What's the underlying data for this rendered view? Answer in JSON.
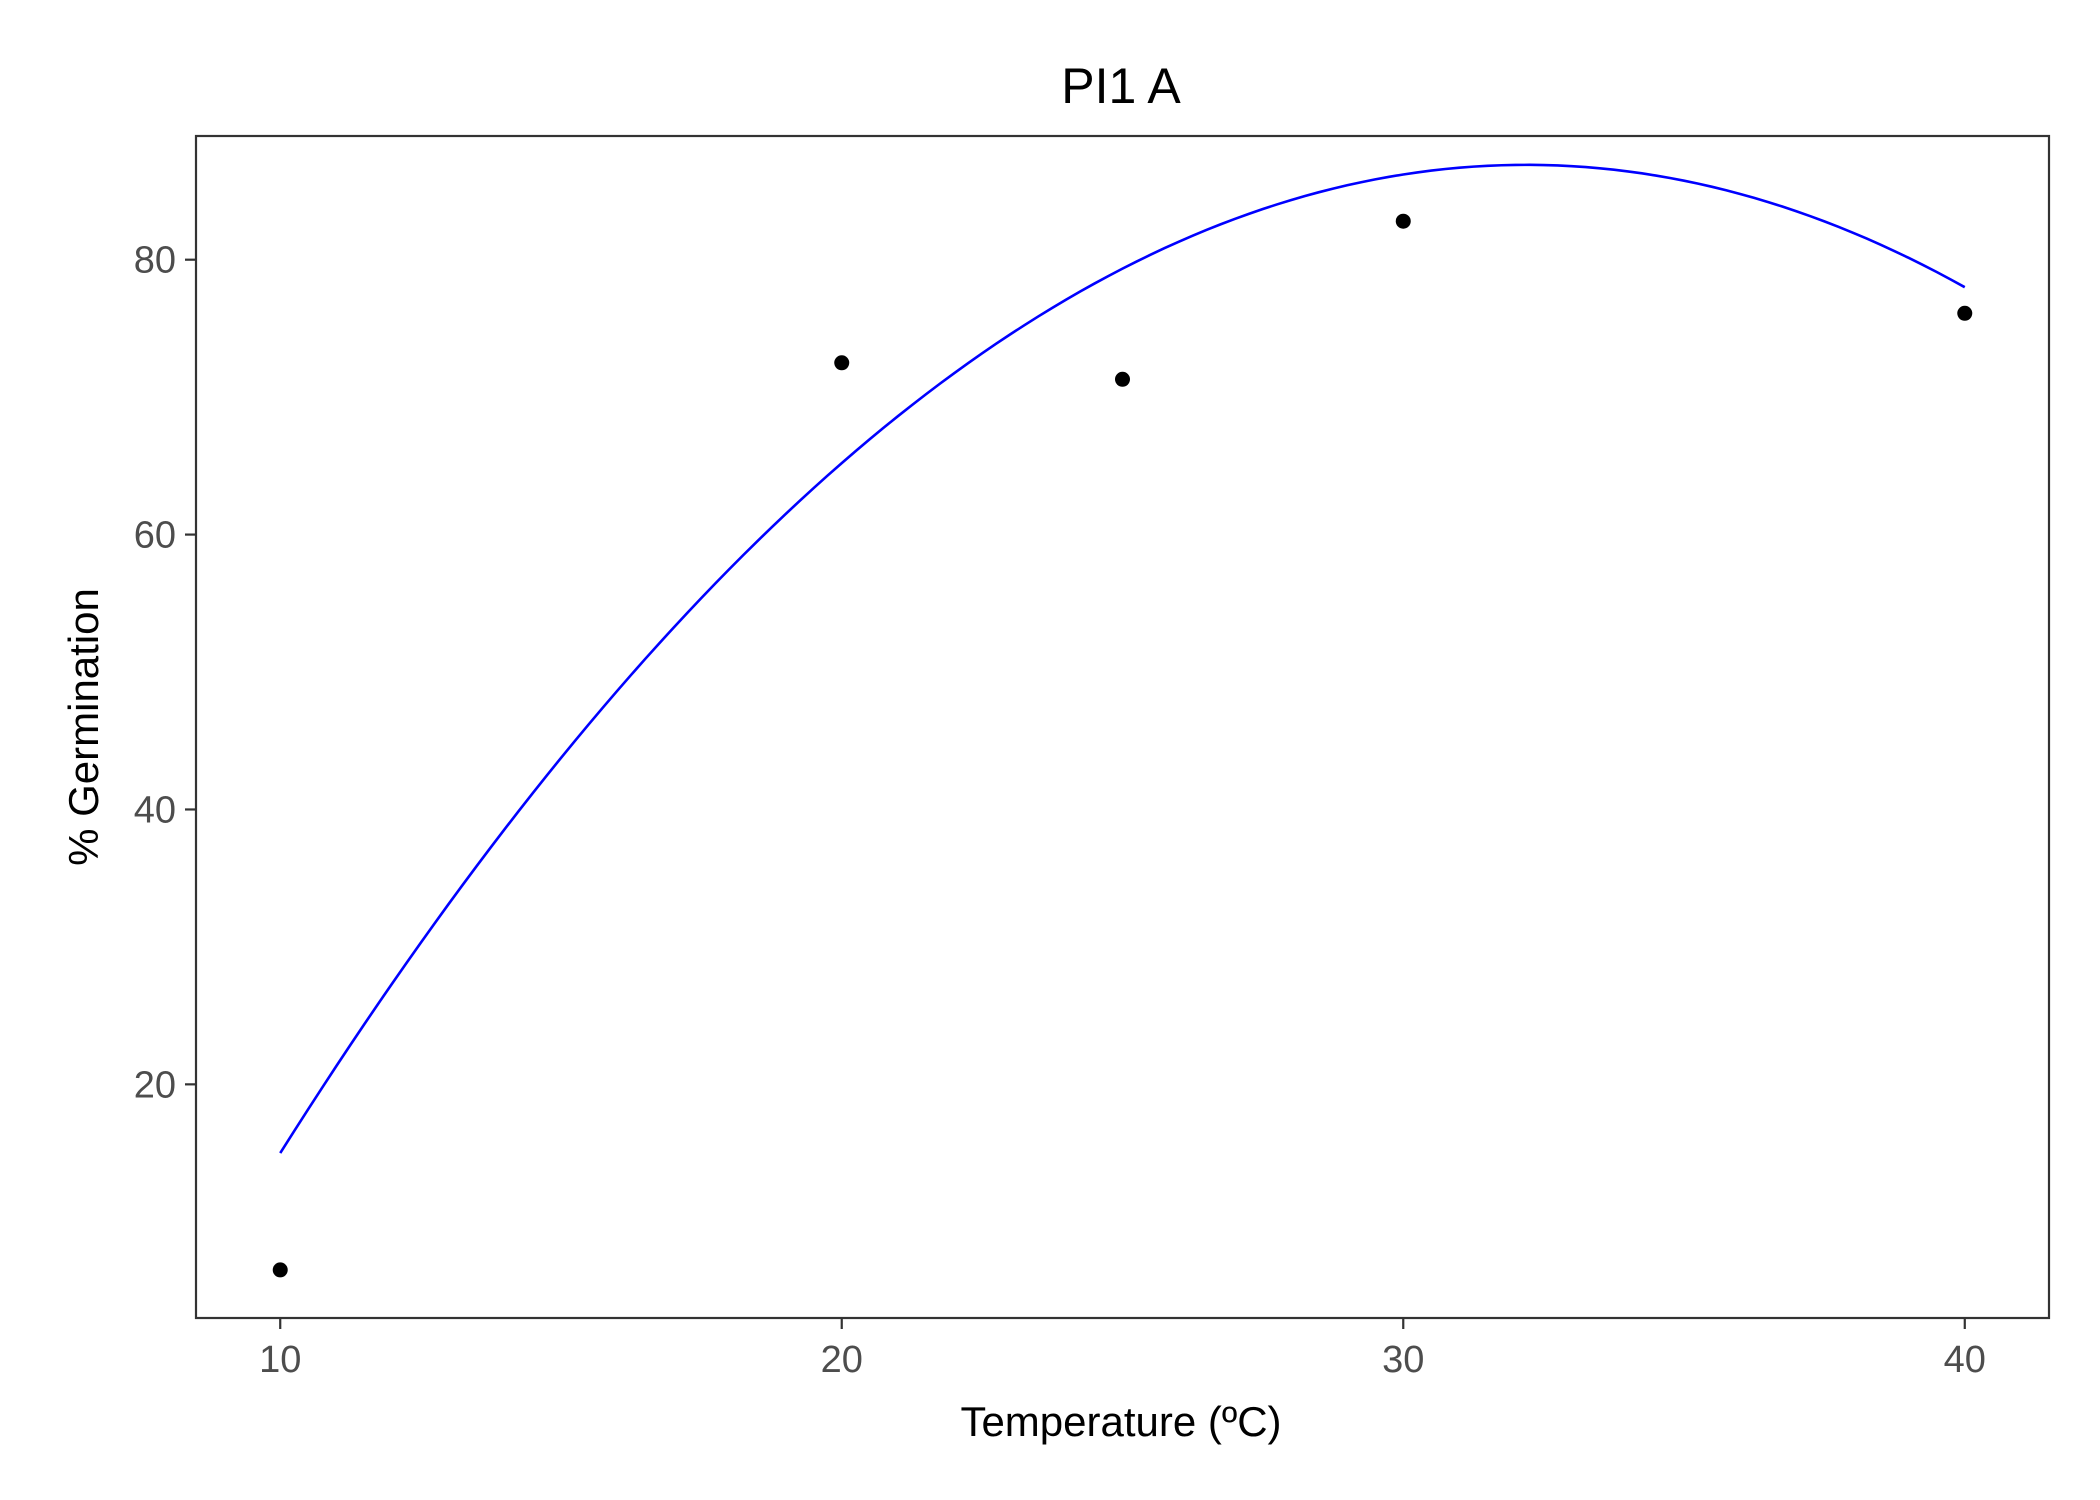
{
  "chart_data": {
    "type": "scatter",
    "title": "PI1 A",
    "xlabel": "Temperature (ºC)",
    "ylabel": "% Germination",
    "xlim": [
      8.5,
      41.5
    ],
    "ylim": [
      3,
      89
    ],
    "x_ticks": [
      10,
      20,
      30,
      40
    ],
    "y_ticks": [
      20,
      40,
      60,
      80
    ],
    "grid": false,
    "legend": "none",
    "points": {
      "color": "#000000",
      "x": [
        10,
        20,
        25,
        30,
        40
      ],
      "y": [
        6.5,
        72.5,
        71.3,
        82.8,
        76.1
      ]
    },
    "fit_curve": {
      "type": "quadratic",
      "color": "#0000ff",
      "coefficients": [
        -64.4,
        9.4,
        -0.146
      ],
      "x_range": [
        10,
        40
      ]
    }
  }
}
